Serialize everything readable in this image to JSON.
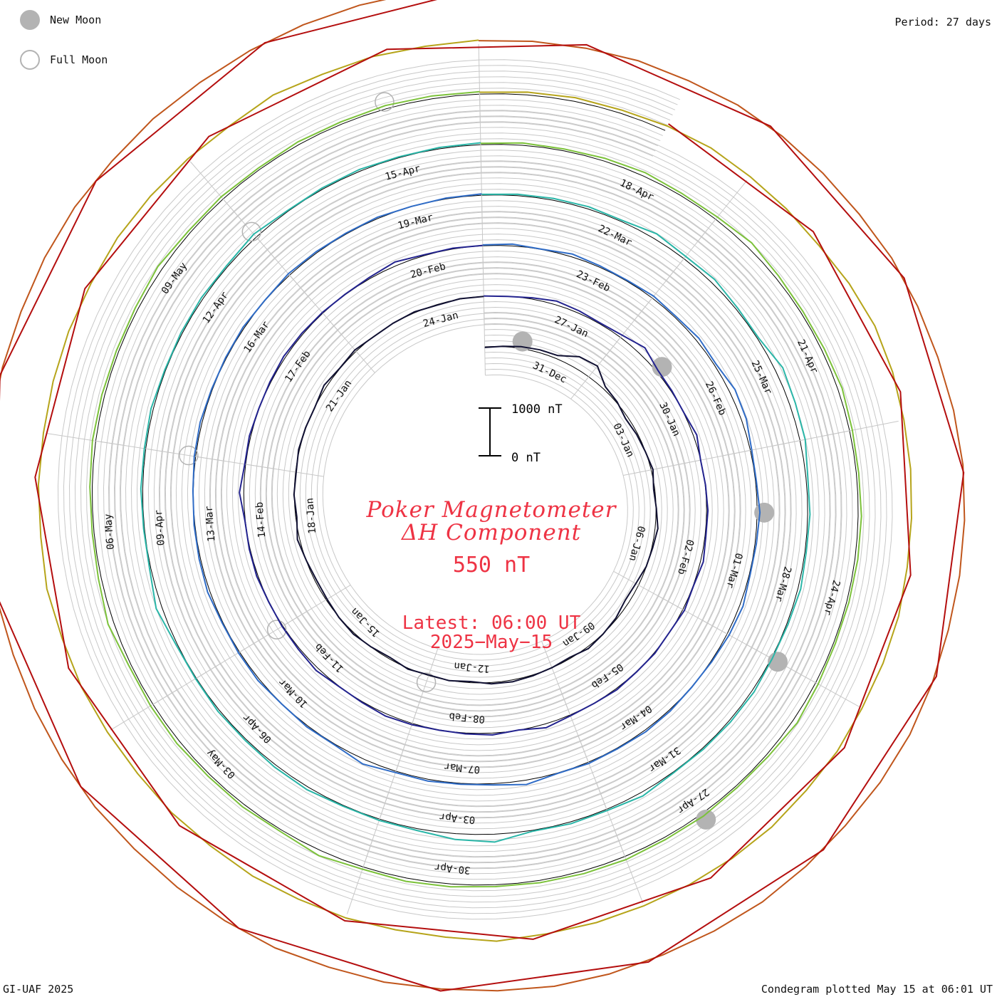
{
  "legend": {
    "new_moon": "New Moon",
    "full_moon": "Full Moon"
  },
  "period": "Period: 27 days",
  "title": {
    "line1": "Poker Magnetometer",
    "line2": "ΔH Component",
    "range": "550 nT"
  },
  "latest": {
    "time": "Latest: 06:00 UT",
    "date": "2025−May−15"
  },
  "scale_bar": {
    "top_label": "1000 nT",
    "bottom_label": "0 nT"
  },
  "footer": {
    "credit": "GI-UAF 2025",
    "plotted": "Condegram plotted May 15 at 06:01 UT"
  },
  "colors": {
    "title": "#ee3344",
    "grid": "#c8c8c8",
    "baseline": "#000000",
    "moon": "#b3b3b3"
  },
  "chart_data": {
    "type": "line",
    "title": "Poker Magnetometer ΔH Component",
    "subtitle": "550 nT",
    "period_days": 27,
    "start_date": "2024-12-29",
    "end_date": "2025-05-15",
    "units": "nT",
    "turns": [
      {
        "color": "#111133",
        "values": [
          130,
          150,
          180,
          200,
          210,
          380,
          420,
          200,
          160,
          90,
          120,
          140,
          180,
          120,
          150,
          200,
          160,
          140,
          80,
          60,
          120,
          150,
          180,
          120,
          140,
          160,
          180,
          170,
          120,
          150,
          130,
          160,
          110,
          140,
          170,
          150,
          120,
          110,
          140,
          190,
          120,
          150,
          130,
          160,
          150,
          140,
          200,
          150,
          180,
          140,
          150,
          160,
          130,
          150,
          140
        ]
      },
      {
        "color": "#23238f",
        "values": [
          150,
          140,
          170,
          220,
          190,
          160,
          200,
          300,
          180,
          160,
          150,
          210,
          140,
          150,
          170,
          160,
          200,
          150,
          180,
          140,
          160,
          150,
          170,
          150,
          160,
          220,
          140,
          180,
          160,
          150,
          170,
          190,
          160,
          150,
          200,
          170,
          160,
          150,
          170,
          160,
          150,
          230,
          160,
          170,
          150,
          160,
          180,
          170,
          160,
          150,
          170,
          220,
          160,
          160,
          150
        ]
      },
      {
        "color": "#2f6cc7",
        "values": [
          160,
          180,
          150,
          200,
          170,
          160,
          190,
          170,
          210,
          180,
          260,
          240,
          170,
          160,
          200,
          170,
          160,
          210,
          190,
          160,
          150,
          170,
          180,
          160,
          170,
          150,
          230,
          170,
          160,
          180,
          170,
          240,
          160,
          170,
          150,
          180,
          170,
          160,
          190,
          170,
          160,
          150,
          170,
          180,
          160,
          160,
          170,
          150,
          180,
          170,
          160,
          170,
          150,
          160,
          170
        ]
      },
      {
        "color": "#2ab6a8",
        "values": [
          160,
          170,
          180,
          190,
          170,
          250,
          200,
          230,
          180,
          170,
          300,
          260,
          250,
          180,
          190,
          170,
          200,
          170,
          160,
          190,
          180,
          170,
          160,
          220,
          170,
          180,
          160,
          300,
          260,
          180,
          170,
          160,
          200,
          190,
          170,
          180,
          160,
          170,
          260,
          170,
          160,
          180,
          170,
          190,
          160,
          170,
          180,
          170,
          220,
          160,
          170,
          180,
          160,
          170,
          180
        ]
      },
      {
        "color": "#7cc23a",
        "values": [
          170,
          190,
          180,
          200,
          220,
          190,
          200,
          260,
          210,
          190,
          200,
          230,
          200,
          190,
          210,
          200,
          190,
          180,
          200,
          240,
          190,
          180,
          200,
          190,
          210,
          200,
          190,
          180,
          200,
          210,
          190,
          250,
          180,
          200,
          190,
          210,
          200,
          190,
          260,
          200,
          180,
          190,
          210,
          200,
          190,
          200,
          240,
          190,
          200,
          180,
          200,
          190,
          210,
          200,
          190
        ]
      },
      {
        "color": "#b6a41a",
        "values": [
          180,
          200,
          220,
          210,
          240,
          260,
          230,
          220,
          210,
          260,
          300,
          280,
          240,
          220,
          200,
          190,
          210,
          200,
          190,
          210,
          200,
          220,
          210,
          200,
          190,
          200,
          210,
          260,
          200,
          190,
          210,
          200,
          220,
          200,
          210,
          190,
          200,
          220,
          210,
          240,
          200,
          210,
          190,
          200,
          210,
          200,
          220,
          210,
          200,
          190,
          250,
          200,
          210,
          190,
          210
        ]
      },
      {
        "color": "#c0561c",
        "values": [
          200,
          210,
          220,
          240,
          230,
          260,
          250,
          230,
          220,
          240,
          230,
          220,
          240,
          260,
          250,
          240,
          230,
          250,
          270,
          260,
          240,
          250,
          260,
          240,
          230,
          250,
          260,
          240,
          230,
          250,
          240,
          270,
          260,
          250,
          240,
          260,
          250,
          240,
          230,
          250,
          260,
          280,
          250,
          240,
          230,
          250,
          260,
          240,
          250,
          230,
          240,
          250,
          260,
          270,
          250
        ]
      },
      {
        "color": "#b40e0e",
        "values": [
          220,
          240,
          230,
          250,
          260,
          240,
          250,
          270,
          260,
          250,
          280,
          260,
          250,
          270,
          290,
          280,
          270,
          260,
          280,
          300,
          290,
          270,
          280,
          300,
          290,
          280,
          310,
          300,
          290
        ]
      }
    ],
    "date_labels": [
      "31-Dec",
      "03-Jan",
      "06-Jan",
      "09-Jan",
      "12-Jan",
      "15-Jan",
      "18-Jan",
      "21-Jan",
      "24-Jan",
      "27-Jan",
      "30-Jan",
      "02-Feb",
      "05-Feb",
      "08-Feb",
      "11-Feb",
      "14-Feb",
      "17-Feb",
      "20-Feb",
      "23-Feb",
      "26-Feb",
      "01-Mar",
      "04-Mar",
      "07-Mar",
      "10-Mar",
      "13-Mar",
      "16-Mar",
      "19-Mar",
      "22-Mar",
      "25-Mar",
      "28-Mar",
      "31-Mar",
      "03-Apr",
      "06-Apr",
      "09-Apr",
      "12-Apr",
      "15-Apr",
      "18-Apr",
      "21-Apr",
      "24-Apr",
      "27-Apr",
      "30-Apr",
      "03-May",
      "06-May",
      "09-May"
    ],
    "new_moons": [
      "2024-12-30",
      "2025-01-29",
      "2025-02-28",
      "2025-03-29",
      "2025-04-27"
    ],
    "full_moons": [
      "2025-01-13",
      "2025-02-12",
      "2025-03-14",
      "2025-04-13",
      "2025-05-12"
    ]
  }
}
